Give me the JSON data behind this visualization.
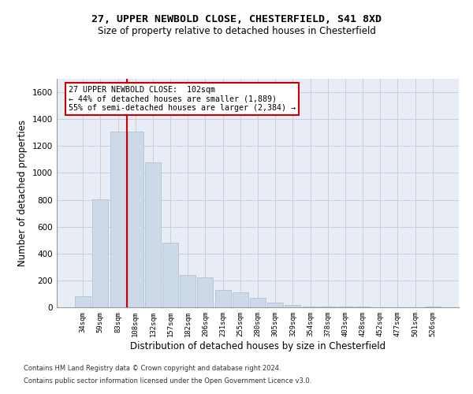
{
  "title": "27, UPPER NEWBOLD CLOSE, CHESTERFIELD, S41 8XD",
  "subtitle": "Size of property relative to detached houses in Chesterfield",
  "xlabel": "Distribution of detached houses by size in Chesterfield",
  "ylabel": "Number of detached properties",
  "footnote1": "Contains HM Land Registry data © Crown copyright and database right 2024.",
  "footnote2": "Contains public sector information licensed under the Open Government Licence v3.0.",
  "annotation_line1": "27 UPPER NEWBOLD CLOSE:  102sqm",
  "annotation_line2": "← 44% of detached houses are smaller (1,889)",
  "annotation_line3": "55% of semi-detached houses are larger (2,384) →",
  "bar_color": "#ccd9e8",
  "bar_edge_color": "#aabccc",
  "marker_line_color": "#cc0000",
  "annotation_bg": "#ffffff",
  "annotation_edge": "#cc0000",
  "grid_color": "#c5cfe0",
  "axes_bg": "#e8ecf4",
  "categories": [
    "34sqm",
    "59sqm",
    "83sqm",
    "108sqm",
    "132sqm",
    "157sqm",
    "182sqm",
    "206sqm",
    "231sqm",
    "255sqm",
    "280sqm",
    "305sqm",
    "329sqm",
    "354sqm",
    "378sqm",
    "403sqm",
    "428sqm",
    "452sqm",
    "477sqm",
    "501sqm",
    "526sqm"
  ],
  "values": [
    80,
    805,
    1310,
    1310,
    1080,
    480,
    240,
    220,
    130,
    110,
    70,
    35,
    20,
    8,
    5,
    8,
    3,
    2,
    2,
    2,
    5
  ],
  "ylim": [
    0,
    1700
  ],
  "yticks": [
    0,
    200,
    400,
    600,
    800,
    1000,
    1200,
    1400,
    1600
  ],
  "marker_index": 2.5
}
